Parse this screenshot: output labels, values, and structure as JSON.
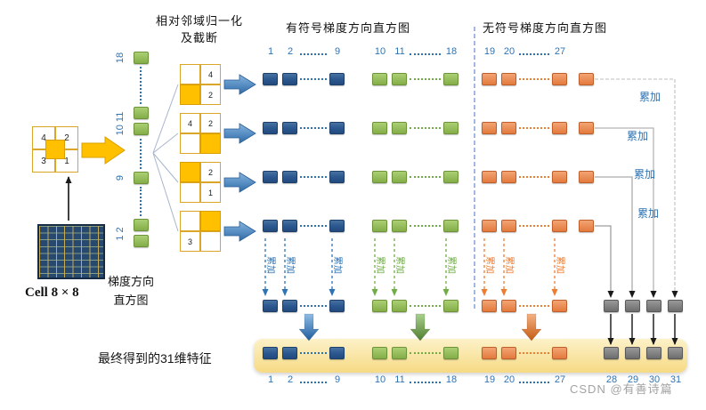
{
  "headers": {
    "normalize_line1": "相对邻域归一化",
    "normalize_line2": "及截断",
    "signed": "有符号梯度方向直方图",
    "unsigned": "无符号梯度方向直方图"
  },
  "left": {
    "cell_label": "Cell 8 × 8",
    "hist_line1": "梯度方向",
    "hist_line2": "直方图",
    "cell_grid": {
      "tl": "4",
      "tr": "2",
      "bl": "3",
      "br": "1"
    }
  },
  "green_column": {
    "labels": [
      "18",
      "10 11",
      "9",
      "1 2"
    ]
  },
  "norm_grids": [
    {
      "cells": {
        "tl": "",
        "tr": "4",
        "bl": "",
        "br": "2"
      },
      "yellow": "bl"
    },
    {
      "cells": {
        "tl": "4",
        "tr": "2",
        "bl": "",
        "br": ""
      },
      "yellow": "br"
    },
    {
      "cells": {
        "tl": "",
        "tr": "2",
        "bl": "",
        "br": "1"
      },
      "yellow": "tl"
    },
    {
      "cells": {
        "tl": "",
        "tr": "",
        "bl": "3",
        "br": ""
      },
      "yellow": "tr"
    }
  ],
  "bins": {
    "signed_blue": [
      "1",
      "2",
      "9"
    ],
    "signed_green": [
      "10",
      "11",
      "18"
    ],
    "unsigned_orange": [
      "19",
      "20",
      "27"
    ],
    "texture_gray": [
      "28",
      "29",
      "30",
      "31"
    ]
  },
  "labels": {
    "accumulate": "累加",
    "final": "最终得到的31维特征"
  },
  "watermark": "CSDN @有善诗篇",
  "colors": {
    "accent_blue": "#2E74B5",
    "accent_green": "#70AD47",
    "accent_orange": "#ED7D31",
    "bin_blue": "#2A568F",
    "bin_green": "#8CB455",
    "bin_orange": "#E8814B",
    "bin_gray": "#7F7F7F",
    "highlight_yellow": "#FFC000",
    "band_yellow": "#F6DA84"
  }
}
